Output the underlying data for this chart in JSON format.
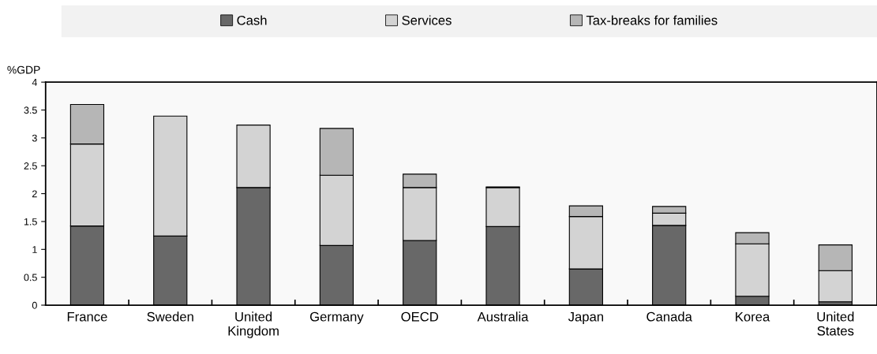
{
  "chart_data": {
    "type": "bar",
    "stacked": true,
    "ylabel": "%GDP",
    "categories": [
      "France",
      "Sweden",
      "United\nKingdom",
      "Germany",
      "OECD",
      "Australia",
      "Japan",
      "Canada",
      "Korea",
      "United\nStates"
    ],
    "series": [
      {
        "name": "Cash",
        "color": "#686868",
        "values": [
          1.42,
          1.24,
          2.11,
          1.07,
          1.16,
          1.41,
          0.65,
          1.43,
          0.16,
          0.06
        ]
      },
      {
        "name": "Services",
        "color": "#d3d3d3",
        "values": [
          1.47,
          2.15,
          1.12,
          1.26,
          0.95,
          0.7,
          0.94,
          0.22,
          0.94,
          0.56
        ]
      },
      {
        "name": "Tax-breaks for families",
        "color": "#b6b6b6",
        "values": [
          0.71,
          null,
          null,
          0.84,
          0.24,
          0.01,
          0.19,
          0.12,
          0.2,
          0.46
        ]
      }
    ],
    "ylim": [
      0,
      4
    ],
    "yticks": [
      0,
      0.5,
      1,
      1.5,
      2,
      2.5,
      3,
      3.5,
      4
    ],
    "grid": false,
    "legend": "top"
  }
}
